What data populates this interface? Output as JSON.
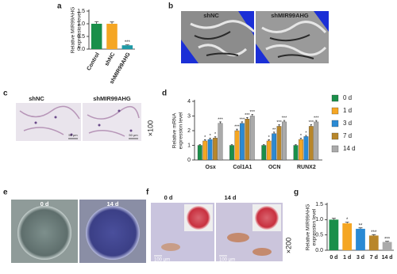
{
  "chart_data": [
    {
      "type": "bar",
      "ylabel": [
        "Relative MIR99AHG",
        "expression level"
      ],
      "categories": [
        "Control",
        "shNC",
        "shMIR99AHG"
      ],
      "values": [
        1.0,
        1.0,
        0.15
      ],
      "errors": [
        0.08,
        0.07,
        0.02
      ],
      "colors": [
        "#1a8f4a",
        "#f5a623",
        "#1f9aa6"
      ],
      "annotations": [
        null,
        null,
        "***"
      ],
      "ylim": [
        0,
        1.5
      ],
      "yticks": [
        {
          "value": 0,
          "label": "0.0"
        },
        {
          "value": 0.5,
          "label": "0.5"
        },
        {
          "value": 1,
          "label": "1.0"
        },
        {
          "value": 1.5,
          "label": "1.5"
        }
      ]
    },
    {
      "type": "bar",
      "ylabel": [
        "Relative mRNA",
        "expression level"
      ],
      "categories": [
        "Osx",
        "Col1A1",
        "OCN",
        "RUNX2"
      ],
      "series": [
        {
          "name": "0 d",
          "color": "#1a8f4a",
          "values": [
            1.0,
            1.0,
            1.0,
            1.0
          ],
          "errors": [
            0.05,
            0.05,
            0.05,
            0.05
          ],
          "annotations": [
            null,
            null,
            null,
            null
          ]
        },
        {
          "name": "1 d",
          "color": "#f5a623",
          "values": [
            1.3,
            2.0,
            1.3,
            1.4
          ],
          "errors": [
            0.08,
            0.1,
            0.08,
            0.08
          ],
          "annotations": [
            "*",
            "***",
            "*",
            "*"
          ]
        },
        {
          "name": "3 d",
          "color": "#2a8ad4",
          "values": [
            1.4,
            2.5,
            1.8,
            1.6
          ],
          "errors": [
            0.08,
            0.1,
            0.1,
            0.08
          ],
          "annotations": [
            "*",
            "***",
            "**",
            "*"
          ]
        },
        {
          "name": "7 d",
          "color": "#b8862a",
          "values": [
            1.5,
            2.8,
            2.3,
            2.3
          ],
          "errors": [
            0.08,
            0.1,
            0.1,
            0.1
          ],
          "annotations": [
            "*",
            "***",
            "***",
            "***"
          ]
        },
        {
          "name": "14 d",
          "color": "#aaaaaa",
          "values": [
            2.5,
            3.0,
            2.6,
            2.6
          ],
          "errors": [
            0.1,
            0.1,
            0.1,
            0.1
          ],
          "annotations": [
            "***",
            "***",
            "***",
            "***"
          ]
        }
      ],
      "ylim": [
        0,
        4
      ],
      "yticks": [
        0,
        1,
        2,
        3,
        4
      ],
      "legend": "right"
    },
    {
      "type": "bar",
      "ylabel": [
        "Relative MIR99AHG",
        "expression level"
      ],
      "categories": [
        "0 d",
        "1 d",
        "3 d",
        "7 d",
        "14 d"
      ],
      "values": [
        1.0,
        0.88,
        0.7,
        0.48,
        0.27
      ],
      "errors": [
        0.04,
        0.04,
        0.03,
        0.03,
        0.02
      ],
      "colors": [
        "#1a8f4a",
        "#f5a623",
        "#2a8ad4",
        "#b8862a",
        "#aaaaaa"
      ],
      "annotations": [
        null,
        "*",
        "**",
        "***",
        "***"
      ],
      "ylim": [
        0,
        1.5
      ],
      "yticks": [
        {
          "value": 0,
          "label": "0.0"
        },
        {
          "value": 0.5,
          "label": "0.5"
        },
        {
          "value": 1,
          "label": "1.0"
        },
        {
          "value": 1.5,
          "label": "1.5"
        }
      ]
    }
  ],
  "panels": {
    "a": {
      "letter": "a"
    },
    "b": {
      "letter": "b",
      "labels": [
        "shNC",
        "shMIR99AHG"
      ]
    },
    "c": {
      "letter": "c",
      "labels": [
        "shNC",
        "shMIR99AHG"
      ],
      "magnification": "×100",
      "scale_bars": [
        "50 μm",
        "50 μm"
      ]
    },
    "d": {
      "letter": "d"
    },
    "e": {
      "letter": "e",
      "labels": [
        "0 d",
        "14 d"
      ]
    },
    "f": {
      "letter": "f",
      "labels": [
        "0 d",
        "14 d"
      ],
      "magnification": "×200",
      "scale_bars": [
        "100 μm",
        "100 μm"
      ]
    },
    "g": {
      "letter": "g"
    }
  }
}
